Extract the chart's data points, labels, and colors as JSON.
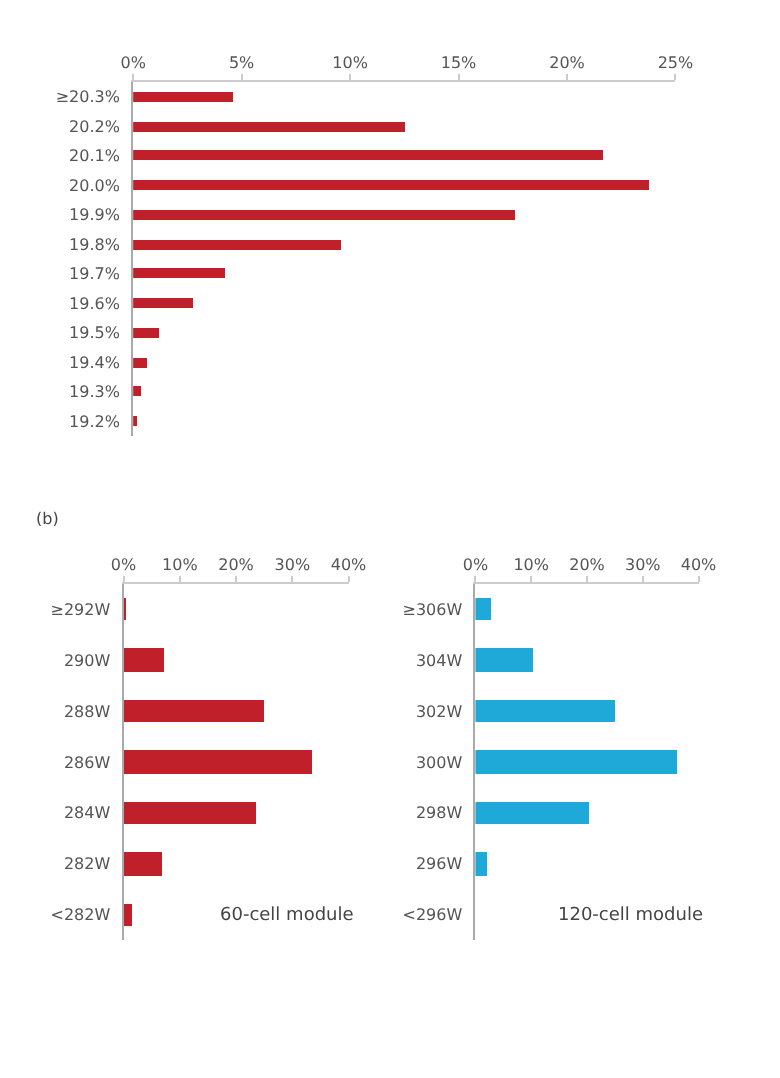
{
  "chart_data": [
    {
      "type": "bar",
      "orientation": "horizontal",
      "categories": [
        "≥20.3%",
        "20.2%",
        "20.1%",
        "20.0%",
        "19.9%",
        "19.8%",
        "19.7%",
        "19.6%",
        "19.5%",
        "19.4%",
        "19.3%",
        "19.2%"
      ],
      "values": [
        4.6,
        12.5,
        21.7,
        23.8,
        17.6,
        9.6,
        4.2,
        2.8,
        1.2,
        0.6,
        0.4,
        0.2
      ],
      "color": "#c0202a",
      "xlim": [
        0,
        25
      ],
      "xticks": [
        {
          "value": 0,
          "label": "0%"
        },
        {
          "value": 5,
          "label": "5%"
        },
        {
          "value": 10,
          "label": "10%"
        },
        {
          "value": 15,
          "label": "15%"
        },
        {
          "value": 20,
          "label": "20%"
        },
        {
          "value": 25,
          "label": "25%"
        }
      ],
      "grid": false
    },
    {
      "type": "bar",
      "orientation": "horizontal",
      "title": "(b)",
      "categories": [
        "≥292W",
        "290W",
        "288W",
        "286W",
        "284W",
        "282W",
        "<282W"
      ],
      "values": [
        0.2,
        7.1,
        24.9,
        33.3,
        23.4,
        6.8,
        1.5
      ],
      "color": "#c0202a",
      "xlim": [
        0,
        40
      ],
      "xticks": [
        {
          "value": 0,
          "label": "0%"
        },
        {
          "value": 10,
          "label": "10%"
        },
        {
          "value": 20,
          "label": "20%"
        },
        {
          "value": 30,
          "label": "30%"
        },
        {
          "value": 40,
          "label": "40%"
        }
      ],
      "annotations": [
        "60-cell module"
      ],
      "grid": false
    },
    {
      "type": "bar",
      "orientation": "horizontal",
      "categories": [
        "≥306W",
        "304W",
        "302W",
        "300W",
        "298W",
        "296W",
        "<296W"
      ],
      "values": [
        2.8,
        10.4,
        25.2,
        36.1,
        20.3,
        2.2,
        0
      ],
      "color": "#1fa9d9",
      "xlim": [
        0,
        40
      ],
      "xticks": [
        {
          "value": 0,
          "label": "0%"
        },
        {
          "value": 10,
          "label": "10%"
        },
        {
          "value": 20,
          "label": "20%"
        },
        {
          "value": 30,
          "label": "30%"
        },
        {
          "value": 40,
          "label": "40%"
        }
      ],
      "annotations": [
        "120-cell module"
      ],
      "grid": false
    }
  ]
}
